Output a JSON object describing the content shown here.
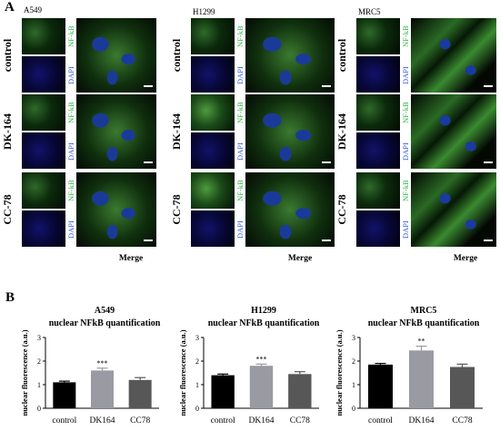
{
  "panel_a": {
    "letter": "A",
    "columns": [
      {
        "title": "A549"
      },
      {
        "title": "H1299"
      },
      {
        "title": "MRC5"
      }
    ],
    "rows": [
      {
        "label": "control"
      },
      {
        "label": "DK-164"
      },
      {
        "label": "CC-78"
      }
    ],
    "channel_nfkb": "NF-kB",
    "channel_dapi": "DAPI",
    "merge_label": "Merge"
  },
  "panel_b": {
    "letter": "B"
  },
  "colors": {
    "control_bar": "#000000",
    "dk164_bar": "#9a9aa2",
    "cc78_bar": "#575757",
    "nfkb_label": "#2fb24a",
    "dapi_label": "#3a5bd9"
  },
  "chart_data": [
    {
      "type": "bar",
      "title": "A549",
      "subtitle": "nuclear NFkB quantification",
      "ylabel": "nuclear fluorescence (a.u.)",
      "categories": [
        "control",
        "DK164",
        "CC78"
      ],
      "values": [
        1.1,
        1.6,
        1.2
      ],
      "errors": [
        0.05,
        0.1,
        0.1
      ],
      "annotations": [
        "",
        "***",
        ""
      ],
      "ylim": [
        0,
        3
      ],
      "yticks": [
        "0",
        "1",
        "2",
        "3"
      ]
    },
    {
      "type": "bar",
      "title": "H1299",
      "subtitle": "nuclear NFkB quantification",
      "ylabel": "nuclear fluorescence (a.u.)",
      "categories": [
        "control",
        "DK164",
        "CC78"
      ],
      "values": [
        1.4,
        1.8,
        1.45
      ],
      "errors": [
        0.05,
        0.07,
        0.1
      ],
      "annotations": [
        "",
        "***",
        ""
      ],
      "ylim": [
        0,
        3
      ],
      "yticks": [
        "0",
        "1",
        "2",
        "3"
      ]
    },
    {
      "type": "bar",
      "title": "MRC5",
      "subtitle": "nuclear NFkB quantification",
      "ylabel": "nuclear fluorescence (a.u.)",
      "categories": [
        "control",
        "DK164",
        "CC78"
      ],
      "values": [
        1.85,
        2.45,
        1.75
      ],
      "errors": [
        0.05,
        0.18,
        0.12
      ],
      "annotations": [
        "",
        "**",
        ""
      ],
      "ylim": [
        0,
        3
      ],
      "yticks": [
        "0",
        "1",
        "2",
        "3"
      ]
    }
  ]
}
